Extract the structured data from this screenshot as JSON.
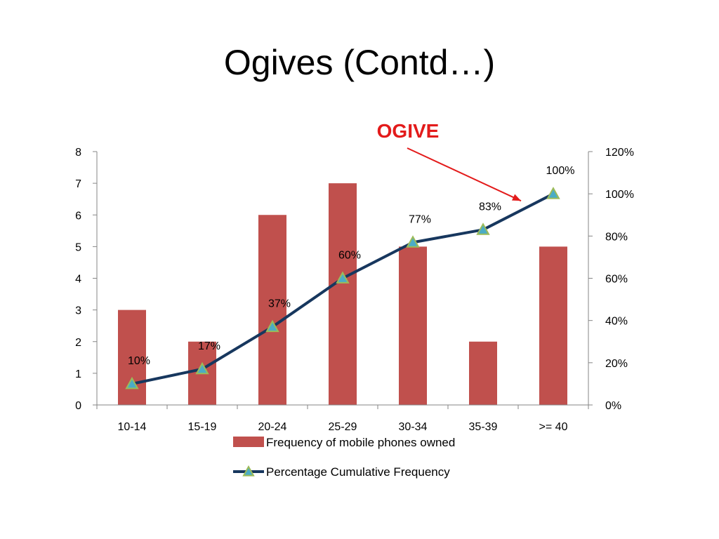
{
  "slide": {
    "title": "Ogives (Contd…)"
  },
  "chart_data": {
    "type": "bar",
    "categories": [
      "10-14",
      "15-19",
      "20-24",
      "25-29",
      "30-34",
      "35-39",
      ">= 40"
    ],
    "series": [
      {
        "name": "Frequency of mobile phones owned",
        "type": "bar",
        "axis": "left",
        "color": "#C0504D",
        "values": [
          3,
          2,
          6,
          7,
          5,
          2,
          5
        ]
      },
      {
        "name": "Percentage Cumulative Frequency",
        "type": "line",
        "axis": "right",
        "color": "#17375E",
        "marker_color": "#4BACC6",
        "marker_edge_color": "#9BBB59",
        "values": [
          10,
          17,
          37,
          60,
          77,
          83,
          100
        ],
        "data_labels": [
          "10%",
          "17%",
          "37%",
          "60%",
          "77%",
          "83%",
          "100%"
        ]
      }
    ],
    "y_left": {
      "lim": [
        0,
        8
      ],
      "ticks": [
        0,
        1,
        2,
        3,
        4,
        5,
        6,
        7,
        8
      ],
      "tick_labels": [
        "0",
        "1",
        "2",
        "3",
        "4",
        "5",
        "6",
        "7",
        "8"
      ]
    },
    "y_right": {
      "lim": [
        0,
        120
      ],
      "ticks": [
        0,
        20,
        40,
        60,
        80,
        100,
        120
      ],
      "tick_labels": [
        "0%",
        "20%",
        "40%",
        "60%",
        "80%",
        "100%",
        "120%"
      ]
    },
    "grid": false,
    "legend_position": "bottom",
    "annotation": {
      "text": "OGIVE",
      "color": "#E31B1B",
      "points_to": ">= 40"
    },
    "title": "",
    "xlabel": "",
    "ylabel": ""
  }
}
